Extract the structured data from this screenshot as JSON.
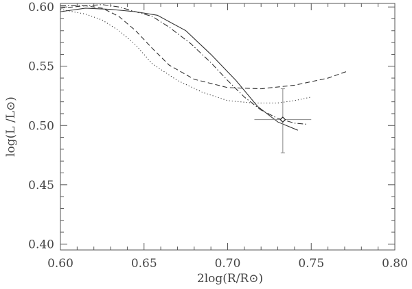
{
  "chart_data": {
    "type": "line",
    "xlabel": "2log(R/R⊙)",
    "ylabel": "log(L /L⊙)",
    "xlim": [
      0.6,
      0.8
    ],
    "ylim": [
      0.395,
      0.603
    ],
    "x_ticks": [
      0.6,
      0.65,
      0.7,
      0.75,
      0.8
    ],
    "x_tick_labels": [
      "0.60",
      "0.65",
      "0.70",
      "0.75",
      "0.80"
    ],
    "y_ticks": [
      0.4,
      0.45,
      0.5,
      0.55,
      0.6
    ],
    "y_tick_labels": [
      "0.40",
      "0.45",
      "0.50",
      "0.55",
      "0.60"
    ],
    "grid": false,
    "series": [
      {
        "style": "solid",
        "x": [
          0.6,
          0.615,
          0.63,
          0.645,
          0.658,
          0.675,
          0.69,
          0.705,
          0.718,
          0.73,
          0.742
        ],
        "y": [
          0.596,
          0.599,
          0.598,
          0.596,
          0.593,
          0.58,
          0.56,
          0.538,
          0.516,
          0.503,
          0.496
        ]
      },
      {
        "style": "dashed",
        "x": [
          0.6,
          0.615,
          0.625,
          0.635,
          0.645,
          0.655,
          0.665,
          0.68,
          0.7,
          0.72,
          0.74,
          0.76,
          0.772
        ],
        "y": [
          0.599,
          0.601,
          0.599,
          0.592,
          0.58,
          0.565,
          0.551,
          0.539,
          0.532,
          0.531,
          0.534,
          0.54,
          0.546
        ]
      },
      {
        "style": "dotted",
        "x": [
          0.6,
          0.615,
          0.625,
          0.635,
          0.645,
          0.655,
          0.67,
          0.685,
          0.7,
          0.715,
          0.73,
          0.74,
          0.75
        ],
        "y": [
          0.598,
          0.594,
          0.589,
          0.58,
          0.568,
          0.552,
          0.538,
          0.528,
          0.521,
          0.519,
          0.519,
          0.521,
          0.524
        ]
      },
      {
        "style": "dashdot",
        "x": [
          0.6,
          0.615,
          0.625,
          0.635,
          0.645,
          0.655,
          0.665,
          0.678,
          0.69,
          0.7,
          0.71,
          0.72,
          0.73,
          0.74,
          0.748
        ],
        "y": [
          0.601,
          0.601,
          0.602,
          0.6,
          0.596,
          0.592,
          0.583,
          0.569,
          0.553,
          0.538,
          0.524,
          0.513,
          0.506,
          0.502,
          0.501
        ]
      }
    ],
    "observed_point": {
      "x": 0.733,
      "y": 0.505,
      "x_err": 0.017,
      "y_err_upper": 0.026,
      "y_err_lower": 0.028
    }
  }
}
